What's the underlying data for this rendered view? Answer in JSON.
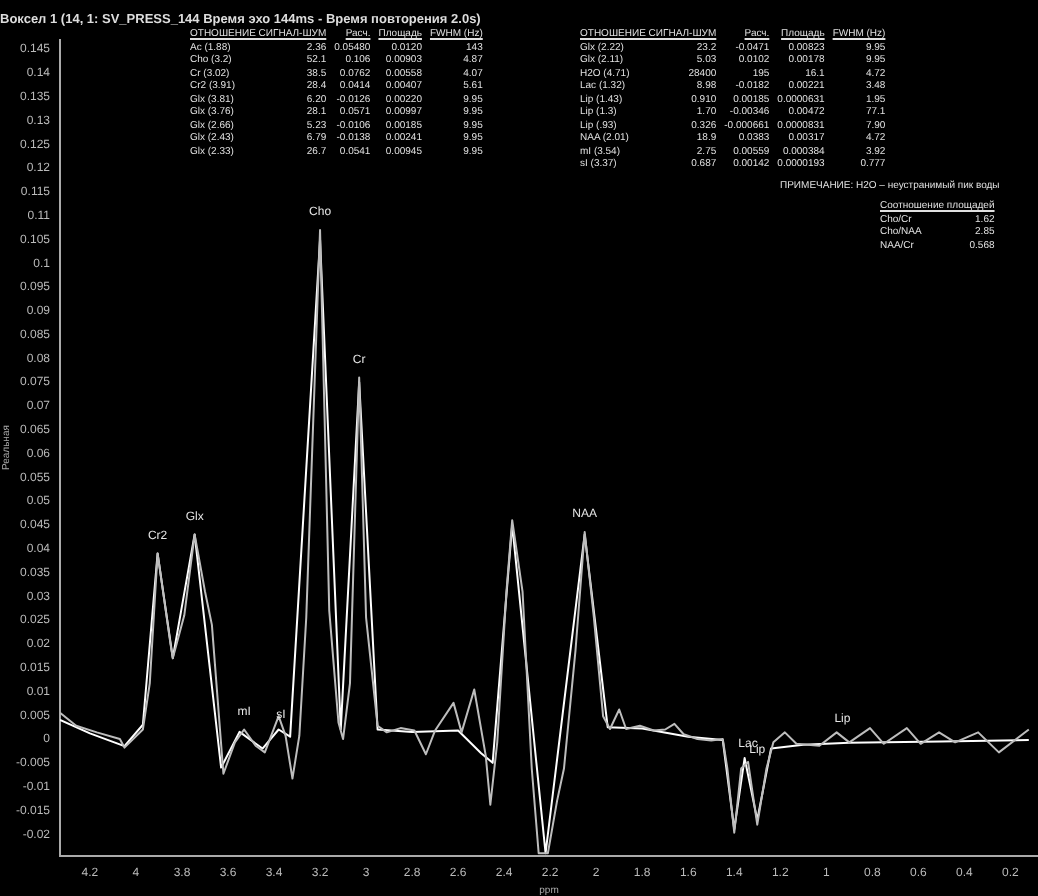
{
  "chart_data": {
    "type": "line",
    "title": "Воксел 1 (14, 1: SV_PRESS_144 Время эхо 144ms - Время повторения 2.0s)",
    "xlabel": "ppm",
    "ylabel": "Реальная",
    "xlim": [
      4.33,
      0.08
    ],
    "xticks": [
      4.2,
      4,
      3.8,
      3.6,
      3.4,
      3.2,
      3,
      2.8,
      2.6,
      2.4,
      2.2,
      2,
      1.8,
      1.6,
      1.4,
      1.2,
      1,
      0.8,
      0.6,
      0.4,
      0.2
    ],
    "ylim": [
      -0.0245,
      0.147
    ],
    "yticks": [
      -0.02,
      -0.015,
      -0.01,
      -0.005,
      0,
      0.005,
      0.01,
      0.015,
      0.02,
      0.025,
      0.03,
      0.035,
      0.04,
      0.045,
      0.05,
      0.055,
      0.06,
      0.065,
      0.07,
      0.075,
      0.08,
      0.085,
      0.09,
      0.095,
      0.1,
      0.105,
      0.11,
      0.115,
      0.12,
      0.125,
      0.13,
      0.135,
      0.14,
      0.145
    ],
    "grid": false,
    "legend": false,
    "marker": "none",
    "line_style": "solid",
    "series": [
      {
        "color": "#bdbdbd",
        "x": [
          4.33,
          4.26,
          4.17,
          4.07,
          4.05,
          3.97,
          3.94,
          3.906,
          3.85,
          3.84,
          3.79,
          3.745,
          3.7,
          3.67,
          3.62,
          3.57,
          3.53,
          3.48,
          3.44,
          3.38,
          3.35,
          3.32,
          3.29,
          3.26,
          3.2,
          3.16,
          3.12,
          3.1,
          3.07,
          3.03,
          3.0,
          2.95,
          2.91,
          2.85,
          2.79,
          2.74,
          2.7,
          2.62,
          2.585,
          2.53,
          2.48,
          2.46,
          2.43,
          2.39,
          2.365,
          2.32,
          2.28,
          2.25,
          2.21,
          2.17,
          2.14,
          2.09,
          2.05,
          2.01,
          1.97,
          1.94,
          1.9,
          1.87,
          1.81,
          1.75,
          1.7,
          1.66,
          1.62,
          1.56,
          1.5,
          1.45,
          1.43,
          1.4,
          1.37,
          1.34,
          1.3,
          1.26,
          1.23,
          1.18,
          1.13,
          1.03,
          0.955,
          0.9,
          0.81,
          0.75,
          0.65,
          0.59,
          0.51,
          0.44,
          0.34,
          0.25,
          0.12
        ],
        "values": [
          0.0055,
          0.0028,
          0.0014,
          0,
          -0.0018,
          0.002,
          0.0117,
          0.039,
          0.02,
          0.017,
          0.026,
          0.043,
          0.031,
          0.024,
          -0.0073,
          -0.0007,
          0.002,
          -0.0014,
          -0.0028,
          0.0048,
          0.0007,
          -0.0083,
          0.0007,
          0.0255,
          0.107,
          0.027,
          0.0035,
          0,
          0.0117,
          0.076,
          0.0255,
          0.0028,
          0.0014,
          0.0023,
          0.0018,
          -0.0032,
          0.0018,
          0.0076,
          0.0014,
          0.0104,
          -0.0035,
          -0.0138,
          -0.0007,
          0.031,
          0.046,
          0.031,
          -0.0062,
          -0.024,
          -0.024,
          -0.013,
          -0.0062,
          0.0186,
          0.0435,
          0.0255,
          0.0048,
          0.0021,
          0.0062,
          0.0021,
          0.0028,
          0.0018,
          0.002,
          0.0032,
          0.001,
          0,
          -0.0003,
          0,
          -0.0062,
          -0.0197,
          -0.0062,
          -0.0048,
          -0.018,
          -0.0062,
          -0.0007,
          0.0014,
          -0.001,
          -0.0014,
          0.0014,
          -0.0007,
          0.0023,
          -0.001,
          0.0023,
          -0.001,
          0.0014,
          -0.0007,
          0.0014,
          -0.0028,
          0.002
        ]
      },
      {
        "color": "#ffffff",
        "x": [
          4.33,
          4.2,
          4.05,
          3.97,
          3.906,
          3.84,
          3.745,
          3.63,
          3.55,
          3.45,
          3.38,
          3.33,
          3.2,
          3.11,
          3.03,
          2.95,
          2.8,
          2.6,
          2.5,
          2.45,
          2.365,
          2.22,
          2.05,
          1.95,
          1.8,
          1.6,
          1.45,
          1.4,
          1.355,
          1.3,
          1.24,
          1.1,
          0.9,
          0.5,
          0.12
        ],
        "values": [
          0.004,
          0.0012,
          -0.0015,
          0.003,
          0.039,
          0.017,
          0.043,
          -0.006,
          0.0015,
          -0.002,
          0.002,
          0.0005,
          0.105,
          0.002,
          0.075,
          0.002,
          0.0015,
          0.0018,
          -0.003,
          -0.005,
          0.045,
          -0.024,
          0.043,
          0.0025,
          0.0022,
          0.0005,
          -0.0002,
          -0.019,
          -0.004,
          -0.017,
          -0.002,
          -0.0012,
          -0.0008,
          -0.0005,
          -0.0002
        ]
      }
    ],
    "annotations": [
      "ОТНОШЕНИЕ СИГНАЛ-ШУМ  Расч.  Площадь  FWHM (Hz)",
      "Ac (1.88)  2.36  0.05480  0.0120  143",
      "Cho (3.2)  52.1  0.106  0.00903  4.87",
      "Cr (3.02)  38.5  0.0762  0.00558  4.07",
      "Cr2 (3.91)  28.4  0.0414  0.00407  5.61",
      "Glx (3.81)  6.20  -0.0126  0.00220  9.95",
      "Glx (3.76)  28.1  0.0571  0.00997  9.95",
      "Glx (2.66)  5.23  -0.0106  0.00185  9.95",
      "Glx (2.43)  6.79  -0.0138  0.00241  9.95",
      "Glx (2.33)  26.7  0.0541  0.00945  9.95",
      "ОТНОШЕНИЕ СИГНАЛ-ШУМ  Расч.  Площадь  FWHM (Hz)",
      "Glx (2.22)  23.2  -0.0471  0.00823  9.95",
      "Glx (2.11)  5.03  0.0102  0.00178  9.95",
      "H2O (4.71)  28400  195  16.1  4.72",
      "Lac (1.32)  8.98  -0.0182  0.00221  3.48",
      "Lip (1.43)  0.910  0.00185  0.0000631  1.95",
      "Lip (1.3)  1.70  -0.00346  0.00472  77.1",
      "Lip (.93)  0.326  -0.000661  0.0000831  7.90",
      "NAA (2.01)  18.9  0.0383  0.00317  4.72",
      "mI (3.54)  2.75  0.00559  0.000384  3.92",
      "sI (3.37)  0.687  0.00142  0.0000193  0.777",
      "ПРИМЕЧАНИЕ: H2O – неустранимый пик воды",
      "Соотношение площадей",
      "Cho/Cr  1.62",
      "Cho/NAA  2.85",
      "NAA/Cr  0.568",
      {
        "text": "Cr2",
        "x": 3.906,
        "y": 0.039
      },
      {
        "text": "Glx",
        "x": 3.745,
        "y": 0.043
      },
      {
        "text": "Cho",
        "x": 3.2,
        "y": 0.107
      },
      {
        "text": "Cr",
        "x": 3.03,
        "y": 0.076
      },
      {
        "text": "NAA",
        "x": 2.05,
        "y": 0.0435
      },
      {
        "text": "mI",
        "x": 3.53,
        "y": 0.002
      },
      {
        "text": "sI",
        "x": 3.37,
        "y": 0.0014
      },
      {
        "text": "Lac",
        "x": 1.34,
        "y": -0.0048
      },
      {
        "text": "Lip",
        "x": 1.3,
        "y": -0.006
      },
      {
        "text": "Lip",
        "x": 0.93,
        "y": 0.0005
      }
    ]
  }
}
